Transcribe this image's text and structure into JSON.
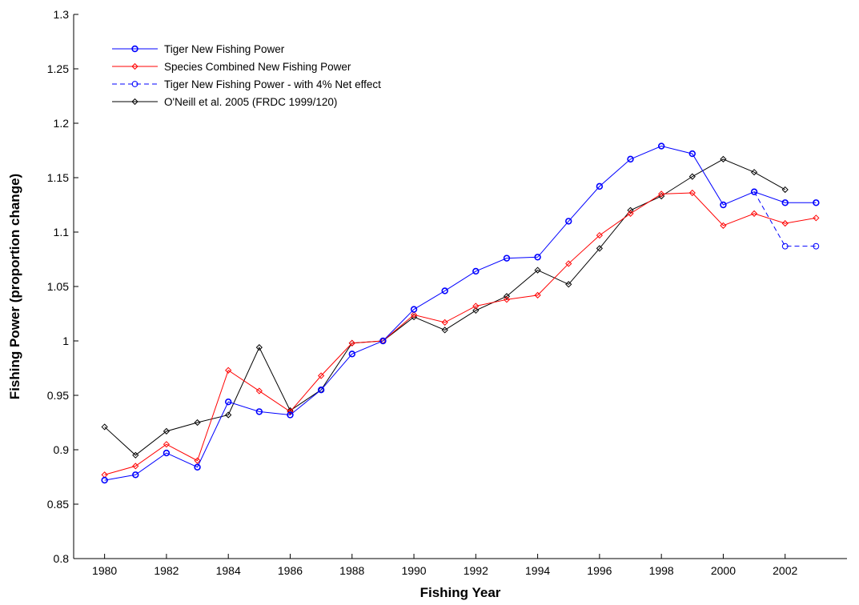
{
  "chart_data": {
    "type": "line",
    "title": "",
    "xlabel": "Fishing Year",
    "ylabel": "Fishing Power (proportion change)",
    "xlim": [
      1979,
      2004
    ],
    "ylim": [
      0.8,
      1.3
    ],
    "x_ticks": [
      1980,
      1982,
      1984,
      1986,
      1988,
      1990,
      1992,
      1994,
      1996,
      1998,
      2000,
      2002
    ],
    "y_ticks": [
      0.8,
      0.85,
      0.9,
      0.95,
      1,
      1.05,
      1.1,
      1.15,
      1.2,
      1.25,
      1.3
    ],
    "grid": false,
    "legend_position": "top-left",
    "series": [
      {
        "name": "Tiger New Fishing Power",
        "color": "#0000ff",
        "line": "solid",
        "marker": "circle",
        "x": [
          1980,
          1981,
          1982,
          1983,
          1984,
          1985,
          1986,
          1987,
          1988,
          1989,
          1990,
          1991,
          1992,
          1993,
          1994,
          1995,
          1996,
          1997,
          1998,
          1999,
          2000,
          2001,
          2002,
          2003
        ],
        "y": [
          0.872,
          0.877,
          0.897,
          0.884,
          0.944,
          0.935,
          0.932,
          0.955,
          0.988,
          1.0,
          1.029,
          1.046,
          1.064,
          1.076,
          1.077,
          1.11,
          1.142,
          1.167,
          1.179,
          1.172,
          1.125,
          1.137,
          1.127,
          1.127
        ]
      },
      {
        "name": "Species Combined New Fishing Power",
        "color": "#ff0000",
        "line": "solid",
        "marker": "diamond",
        "x": [
          1980,
          1981,
          1982,
          1983,
          1984,
          1985,
          1986,
          1987,
          1988,
          1989,
          1990,
          1991,
          1992,
          1993,
          1994,
          1995,
          1996,
          1997,
          1998,
          1999,
          2000,
          2001,
          2002,
          2003
        ],
        "y": [
          0.877,
          0.885,
          0.905,
          0.89,
          0.973,
          0.954,
          0.935,
          0.968,
          0.998,
          1.0,
          1.024,
          1.017,
          1.032,
          1.038,
          1.042,
          1.071,
          1.097,
          1.117,
          1.135,
          1.136,
          1.106,
          1.117,
          1.108,
          1.113
        ]
      },
      {
        "name": "Tiger New Fishing Power - with 4% Net effect",
        "color": "#0000ff",
        "line": "dashed",
        "marker": "circle-open",
        "x": [
          2001,
          2002,
          2003
        ],
        "y": [
          1.137,
          1.087,
          1.087
        ]
      },
      {
        "name": "O'Neill et al. 2005 (FRDC 1999/120)",
        "color": "#000000",
        "line": "solid",
        "marker": "diamond",
        "x": [
          1980,
          1981,
          1982,
          1983,
          1984,
          1985,
          1986,
          1987,
          1988,
          1989,
          1990,
          1991,
          1992,
          1993,
          1994,
          1995,
          1996,
          1997,
          1998,
          1999,
          2000,
          2001,
          2002
        ],
        "y": [
          0.921,
          0.895,
          0.917,
          0.925,
          0.932,
          0.994,
          0.936,
          0.955,
          0.998,
          1.0,
          1.022,
          1.01,
          1.028,
          1.041,
          1.065,
          1.052,
          1.085,
          1.12,
          1.133,
          1.151,
          1.167,
          1.155,
          1.139
        ]
      }
    ]
  }
}
